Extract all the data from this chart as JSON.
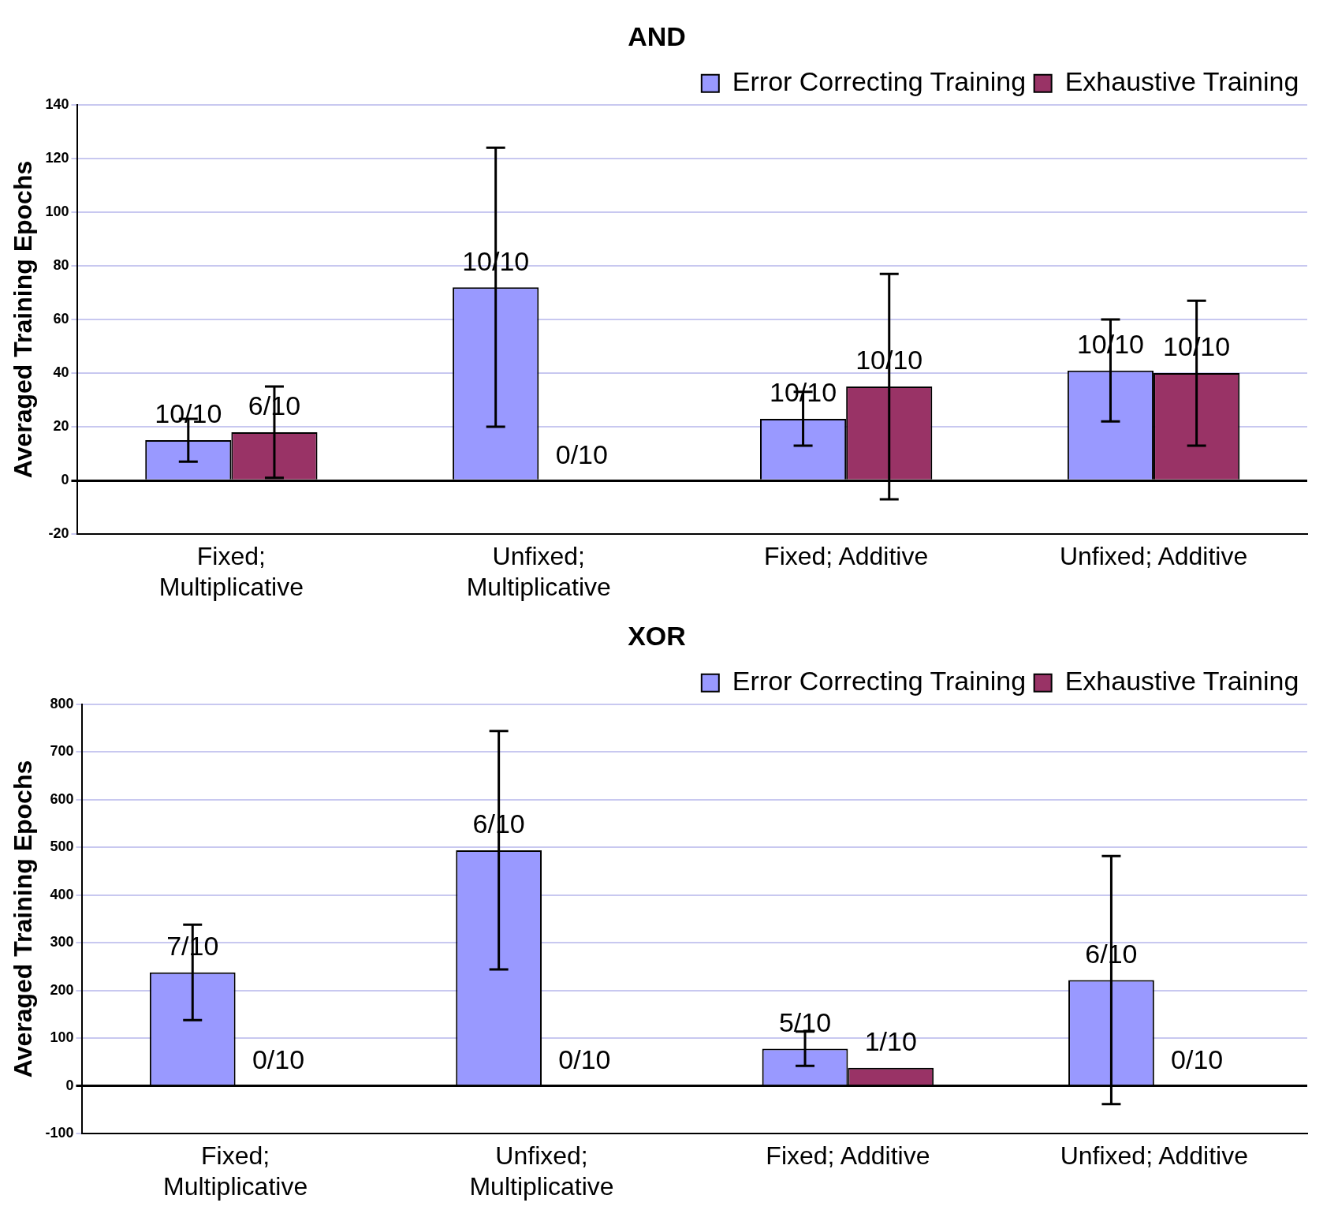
{
  "chart_data": [
    {
      "type": "bar",
      "title": "AND",
      "ylabel": "Averaged Training Epochs",
      "categories": [
        "Fixed; Multiplicative",
        "Unfixed; Multiplicative",
        "Fixed; Additive",
        "Unfixed; Additive"
      ],
      "ylim": [
        -20,
        140
      ],
      "yticks": [
        -20,
        0,
        20,
        40,
        60,
        80,
        100,
        120,
        140
      ],
      "grid": "y",
      "legend": "top right",
      "series": [
        {
          "name": "Error Correcting Training",
          "color": "#9999ff",
          "values": [
            15,
            72,
            23,
            41
          ],
          "errors": [
            8,
            52,
            10,
            19
          ]
        },
        {
          "name": "Exhaustive Training",
          "color": "#993366",
          "values": [
            18,
            null,
            35,
            40
          ],
          "errors": [
            17,
            null,
            42,
            27
          ]
        }
      ],
      "annotations": [
        {
          "text": "10/10",
          "x": "Fixed; Multiplicative",
          "y": 15
        },
        {
          "text": "6/10",
          "x": "Fixed; Multiplicative",
          "y": 18
        },
        {
          "text": "10/10",
          "x": "Unfixed; Multiplicative",
          "y": 72
        },
        {
          "text": "0/10",
          "x": "Unfixed; Multiplicative",
          "y": 0
        },
        {
          "text": "10/10",
          "x": "Fixed; Additive",
          "y": 23
        },
        {
          "text": "10/10",
          "x": "Fixed; Additive",
          "y": 35
        },
        {
          "text": "10/10",
          "x": "Unfixed; Additive",
          "y": 41
        },
        {
          "text": "10/10",
          "x": "Unfixed; Additive",
          "y": 40
        }
      ]
    },
    {
      "type": "bar",
      "title": "XOR",
      "ylabel": "Averaged Training Epochs",
      "categories": [
        "Fixed; Multiplicative",
        "Unfixed; Multiplicative",
        "Fixed; Additive",
        "Unfixed; Additive"
      ],
      "ylim": [
        -100,
        800
      ],
      "yticks": [
        -100,
        0,
        100,
        200,
        300,
        400,
        500,
        600,
        700,
        800
      ],
      "grid": "y",
      "legend": "top right",
      "series": [
        {
          "name": "Error Correcting Training",
          "color": "#9999ff",
          "values": [
            238,
            494,
            78,
            222
          ],
          "errors": [
            100,
            250,
            36,
            260
          ]
        },
        {
          "name": "Exhaustive Training",
          "color": "#993366",
          "values": [
            null,
            null,
            38,
            null
          ],
          "errors": [
            null,
            null,
            null,
            null
          ]
        }
      ],
      "annotations": [
        {
          "text": "7/10",
          "x": "Fixed; Multiplicative",
          "y": 238
        },
        {
          "text": "0/10",
          "x": "Fixed; Multiplicative",
          "y": 0
        },
        {
          "text": "6/10",
          "x": "Unfixed; Multiplicative",
          "y": 494
        },
        {
          "text": "0/10",
          "x": "Unfixed; Multiplicative",
          "y": 0
        },
        {
          "text": "5/10",
          "x": "Fixed; Additive",
          "y": 78
        },
        {
          "text": "1/10",
          "x": "Fixed; Additive",
          "y": 38
        },
        {
          "text": "6/10",
          "x": "Unfixed; Additive",
          "y": 222
        },
        {
          "text": "0/10",
          "x": "Unfixed; Additive",
          "y": 0
        }
      ]
    }
  ]
}
